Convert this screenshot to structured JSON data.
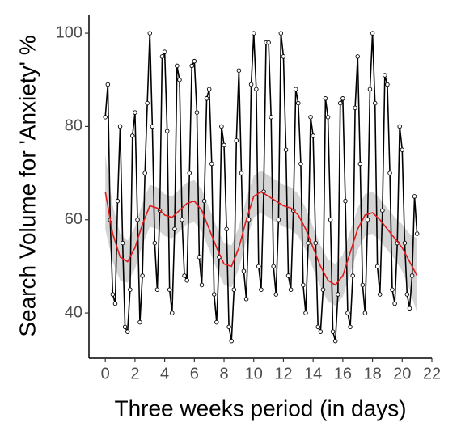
{
  "chart_data": {
    "type": "line",
    "xlabel": "Three weeks period (in days)",
    "ylabel": "Search Volume for 'Anxiety' %",
    "xlim": [
      -1.1,
      22
    ],
    "ylim": [
      30.3,
      104
    ],
    "xticks": [
      0,
      2,
      4,
      6,
      8,
      10,
      12,
      14,
      16,
      18,
      20,
      22
    ],
    "yticks": [
      40,
      60,
      80,
      100
    ],
    "series": [
      {
        "color": "#000000",
        "x": [
          0,
          0.17,
          0.33,
          0.5,
          0.67,
          0.83,
          1,
          1.17,
          1.33,
          1.5,
          1.67,
          1.83,
          2,
          2.17,
          2.33,
          2.5,
          2.67,
          2.83,
          3,
          3.17,
          3.33,
          3.5,
          3.67,
          3.83,
          4,
          4.17,
          4.33,
          4.5,
          4.67,
          4.83,
          5,
          5.17,
          5.33,
          5.5,
          5.67,
          5.83,
          6,
          6.17,
          6.33,
          6.5,
          6.67,
          6.83,
          7,
          7.17,
          7.33,
          7.5,
          7.67,
          7.83,
          8,
          8.17,
          8.33,
          8.5,
          8.67,
          8.83,
          9,
          9.17,
          9.33,
          9.5,
          9.67,
          9.83,
          10,
          10.17,
          10.33,
          10.5,
          10.67,
          10.83,
          11,
          11.17,
          11.33,
          11.5,
          11.67,
          11.83,
          12,
          12.17,
          12.33,
          12.5,
          12.67,
          12.83,
          13,
          13.17,
          13.33,
          13.5,
          13.67,
          13.83,
          14,
          14.17,
          14.33,
          14.5,
          14.67,
          14.83,
          15,
          15.17,
          15.33,
          15.5,
          15.67,
          15.83,
          16,
          16.17,
          16.33,
          16.5,
          16.67,
          16.83,
          17,
          17.17,
          17.33,
          17.5,
          17.67,
          17.83,
          18,
          18.17,
          18.33,
          18.5,
          18.67,
          18.83,
          19,
          19.17,
          19.33,
          19.5,
          19.67,
          19.83,
          20,
          20.17,
          20.33,
          20.5,
          20.67,
          20.83,
          21
        ],
        "values": [
          82,
          89,
          60,
          44,
          42,
          64,
          80,
          55,
          37,
          36,
          45,
          78,
          83,
          60,
          38,
          48,
          70,
          85,
          100,
          80,
          55,
          45,
          62,
          95,
          96,
          79,
          45,
          40,
          58,
          93,
          90,
          60,
          48,
          47,
          70,
          93,
          94,
          83,
          52,
          46,
          64,
          86,
          88,
          72,
          44,
          38,
          52,
          80,
          76,
          58,
          37,
          34,
          45,
          77,
          92,
          70,
          49,
          43,
          60,
          89,
          100,
          88,
          50,
          45,
          66,
          98,
          98,
          82,
          50,
          44,
          60,
          100,
          95,
          75,
          48,
          45,
          62,
          88,
          85,
          72,
          46,
          40,
          55,
          82,
          78,
          55,
          37,
          36,
          45,
          86,
          82,
          60,
          36,
          34,
          44,
          85,
          86,
          64,
          40,
          37,
          48,
          84,
          95,
          72,
          46,
          40,
          60,
          88,
          100,
          85,
          50,
          44,
          62,
          91,
          89,
          70,
          45,
          42,
          55,
          80,
          75,
          55,
          44,
          41,
          48,
          65,
          57
        ]
      },
      {
        "color": "#e31a1c",
        "band_color": "#cccccc",
        "x": [
          0,
          0.5,
          1,
          1.5,
          2,
          2.5,
          3,
          3.5,
          4,
          4.5,
          5,
          5.5,
          6,
          6.5,
          7,
          7.5,
          8,
          8.5,
          9,
          9.5,
          10,
          10.5,
          11,
          11.5,
          12,
          12.5,
          13,
          13.5,
          14,
          14.5,
          15,
          15.5,
          16,
          16.5,
          17,
          17.5,
          18,
          18.5,
          19,
          19.5,
          20,
          20.5,
          21
        ],
        "values": [
          66,
          57,
          52,
          51,
          54,
          59,
          63,
          62.5,
          61,
          60.5,
          62,
          63.5,
          64,
          62,
          58,
          54,
          50.5,
          50,
          54,
          60,
          65,
          66,
          65,
          64,
          63,
          62.5,
          61,
          58,
          54,
          50,
          47,
          46,
          48,
          53,
          58,
          61,
          61.5,
          60,
          58,
          56,
          54,
          51,
          48
        ],
        "lower": [
          58,
          51,
          47,
          46.5,
          49.5,
          54.5,
          58.5,
          58,
          56.5,
          56,
          57.5,
          59,
          59.5,
          57.5,
          53.5,
          49.5,
          46,
          45.5,
          49.5,
          55.5,
          60.5,
          61.5,
          60.5,
          59.5,
          58.5,
          58,
          56.5,
          53.5,
          49.5,
          45.5,
          42.5,
          41.5,
          43.5,
          48.5,
          53.5,
          56.5,
          57,
          55.5,
          53.5,
          51.5,
          49,
          45,
          40
        ],
        "upper": [
          74,
          63,
          57,
          55.5,
          58.5,
          63.5,
          67.5,
          67,
          65.5,
          65,
          66.5,
          68,
          68.5,
          66.5,
          62.5,
          58.5,
          55,
          54.5,
          58.5,
          64.5,
          69.5,
          70.5,
          69.5,
          68.5,
          67.5,
          67,
          65.5,
          62.5,
          58.5,
          54.5,
          51.5,
          50.5,
          52.5,
          57.5,
          62.5,
          65.5,
          66,
          64.5,
          62.5,
          60.5,
          59,
          57,
          56
        ]
      }
    ]
  }
}
